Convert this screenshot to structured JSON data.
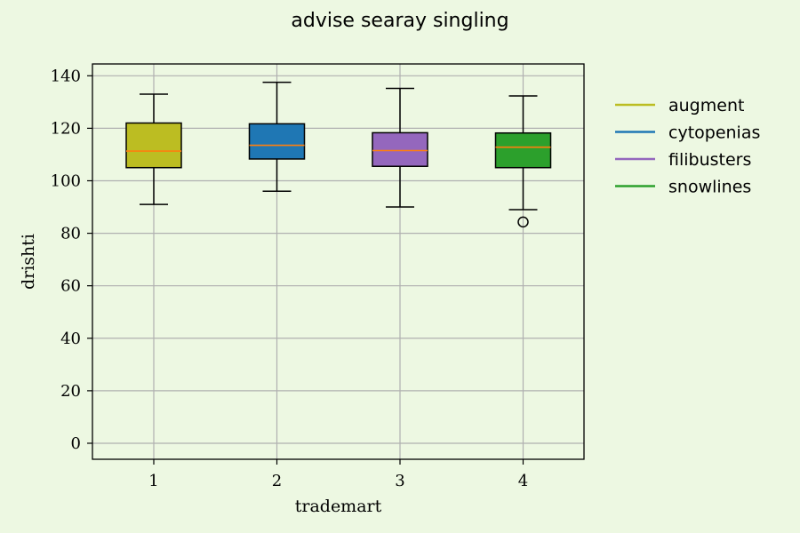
{
  "chart_data": {
    "type": "box",
    "title": "advise searay singling",
    "xlabel": "trademart",
    "ylabel": "drishti",
    "ylim": [
      -6.1,
      144.5
    ],
    "yticks": [
      0,
      20,
      40,
      60,
      80,
      100,
      120,
      140
    ],
    "grid": true,
    "legend_position": "right, outside plot",
    "categories": [
      "1",
      "2",
      "3",
      "4"
    ],
    "series": [
      {
        "name": "augment",
        "color": "#bcbd22",
        "whisker_low": 91,
        "q1": 105,
        "median": 111.3,
        "q3": 122,
        "whisker_high": 133,
        "outliers": []
      },
      {
        "name": "cytopenias",
        "color": "#1f77b4",
        "whisker_low": 96,
        "q1": 108.3,
        "median": 113.5,
        "q3": 121.7,
        "whisker_high": 137.5,
        "outliers": []
      },
      {
        "name": "filibusters",
        "color": "#9467bd",
        "whisker_low": 90,
        "q1": 105.5,
        "median": 111.5,
        "q3": 118.3,
        "whisker_high": 135.2,
        "outliers": []
      },
      {
        "name": "snowlines",
        "color": "#2ca02c",
        "whisker_low": 89,
        "q1": 105,
        "median": 112.8,
        "q3": 118.2,
        "whisker_high": 132.3,
        "outliers": [
          84.3
        ]
      }
    ],
    "median_color": "#ff7f0e",
    "grid_color": "#b0b0b0",
    "background": "#edf8e2"
  }
}
